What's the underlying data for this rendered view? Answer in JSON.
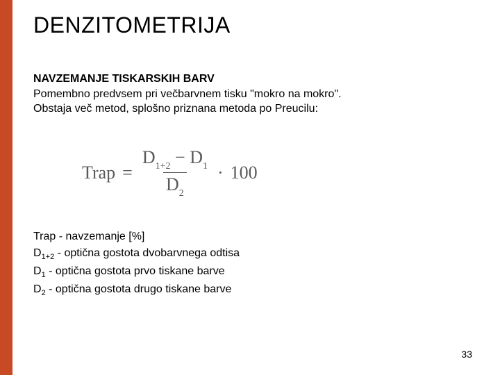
{
  "layout": {
    "left_strip_color": "#c84a24",
    "background_color": "#ffffff"
  },
  "title": "DENZITOMETRIJA",
  "section_heading": "NAVZEMANJE TISKARSKIH BARV",
  "para_line1": "Pomembno predvsem pri večbarvnem tisku \"mokro na mokro\".",
  "para_line2": "Obstaja več metod, splošno priznana metoda po Preucilu:",
  "formula": {
    "label": "Trap",
    "eq": "=",
    "num_left": "D",
    "num_left_sub": "1+2",
    "minus": "−",
    "num_right": "D",
    "num_right_sub": "1",
    "den": "D",
    "den_sub": "2",
    "dot": "·",
    "factor": "100",
    "color": "#5a5a5a"
  },
  "definitions": {
    "d1": {
      "label": "Trap",
      "sep": " - ",
      "text": "navzemanje [%]"
    },
    "d2": {
      "label": "D",
      "sub": "1+2",
      "sep": " - ",
      "text": "optična gostota dvobarvnega odtisa"
    },
    "d3": {
      "label": "D",
      "sub": "1",
      "sep": " - ",
      "text": "optična gostota prvo tiskane barve"
    },
    "d4": {
      "label": "D",
      "sub": "2",
      "sep": " - ",
      "text": "optična gostota drugo tiskane barve"
    }
  },
  "page_number": "33"
}
